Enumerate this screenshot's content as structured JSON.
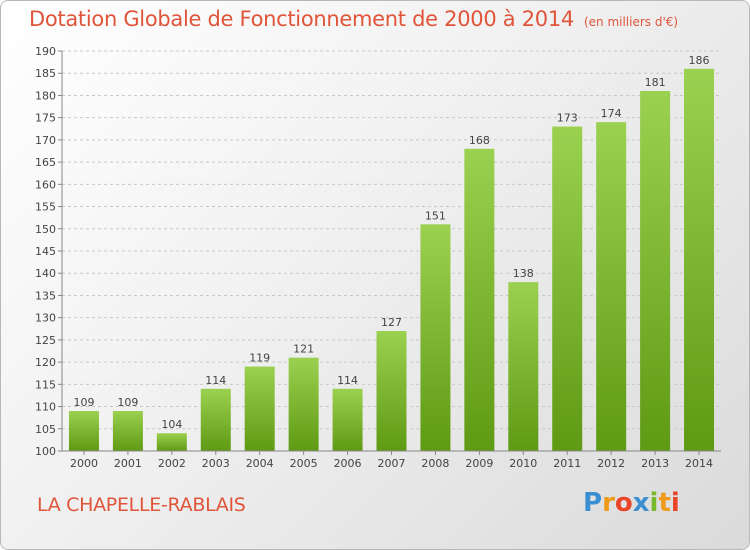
{
  "title": "Dotation Globale de Fonctionnement de 2000 à 2014",
  "unit_note": "(en milliers d'€)",
  "commune": "LA CHAPELLE-RABLAIS",
  "logo": {
    "letters": [
      "P",
      "r",
      "o",
      "x",
      "i",
      "t",
      "i"
    ],
    "colors": [
      "#3a8fd0",
      "#f09a1a",
      "#e8452a",
      "#3a8fd0",
      "#7ab82e",
      "#f09a1a",
      "#e8452a"
    ]
  },
  "colors": {
    "bar_top": "#9bd150",
    "bar_bottom": "#5f9a14",
    "title": "#e0553a"
  },
  "chart_data": {
    "type": "bar",
    "title": "Dotation Globale de Fonctionnement de 2000 à 2014",
    "categories": [
      "2000",
      "2001",
      "2002",
      "2003",
      "2004",
      "2005",
      "2006",
      "2007",
      "2008",
      "2009",
      "2010",
      "2011",
      "2012",
      "2013",
      "2014"
    ],
    "values": [
      109,
      109,
      104,
      114,
      119,
      121,
      114,
      127,
      151,
      168,
      138,
      173,
      174,
      181,
      186
    ],
    "ylim": [
      100,
      190
    ],
    "yticks": [
      100,
      105,
      110,
      115,
      120,
      125,
      130,
      135,
      140,
      145,
      150,
      155,
      160,
      165,
      170,
      175,
      180,
      185,
      190
    ],
    "grid": true,
    "data_labels": true
  }
}
